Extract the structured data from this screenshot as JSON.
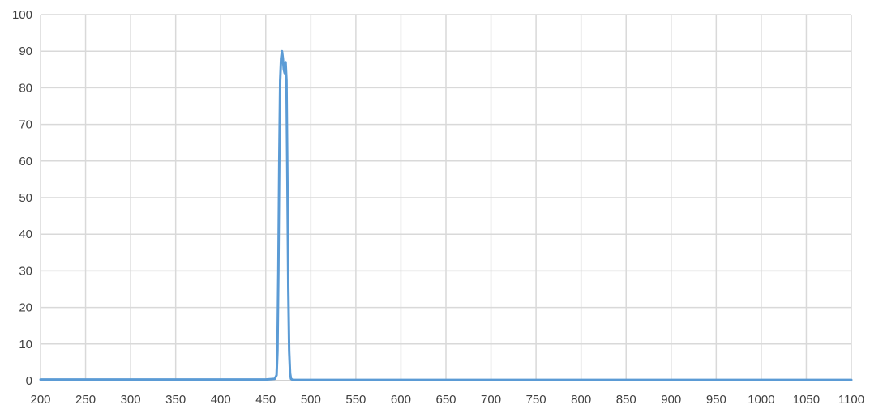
{
  "chart_data": {
    "type": "line",
    "title": "",
    "xlabel": "",
    "ylabel": "",
    "xlim": [
      200,
      1100
    ],
    "ylim": [
      0,
      100
    ],
    "grid": true,
    "legend": "none",
    "x_ticks": [
      "200",
      "250",
      "300",
      "350",
      "400",
      "450",
      "500",
      "550",
      "600",
      "650",
      "700",
      "750",
      "800",
      "850",
      "900",
      "950",
      "1000",
      "1050",
      "1100"
    ],
    "y_ticks": [
      "0",
      "10",
      "20",
      "30",
      "40",
      "50",
      "60",
      "70",
      "80",
      "90",
      "100"
    ],
    "series": [
      {
        "color": "#5b9bd5",
        "x": [
          200,
          300,
          400,
          450,
          460,
          462,
          463,
          464,
          465,
          466,
          467,
          468,
          469,
          470,
          471,
          472,
          473,
          474,
          475,
          476,
          477,
          478,
          480,
          500,
          600,
          700,
          800,
          900,
          1000,
          1100
        ],
        "y": [
          0.3,
          0.3,
          0.3,
          0.3,
          0.5,
          1.5,
          8,
          30,
          60,
          82,
          88,
          90,
          88,
          85,
          84,
          87,
          82,
          55,
          25,
          8,
          2,
          0.5,
          0.2,
          0.2,
          0.2,
          0.2,
          0.2,
          0.2,
          0.2,
          0.2
        ]
      }
    ]
  }
}
